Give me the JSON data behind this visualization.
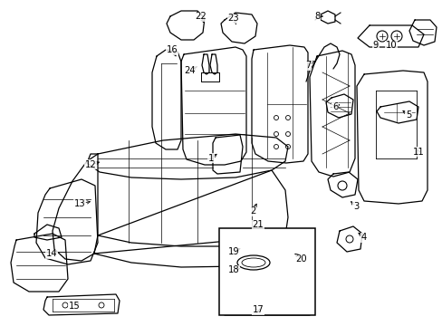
{
  "bg_color": "#ffffff",
  "line_color": "#000000",
  "fig_width": 4.89,
  "fig_height": 3.6,
  "dpi": 100,
  "annotations": [
    [
      "1",
      233,
      175,
      242,
      168,
      "right"
    ],
    [
      "2",
      279,
      233,
      285,
      222,
      "right"
    ],
    [
      "3",
      393,
      228,
      385,
      220,
      "left"
    ],
    [
      "4",
      402,
      262,
      393,
      255,
      "left"
    ],
    [
      "5",
      451,
      127,
      442,
      120,
      "left"
    ],
    [
      "6",
      370,
      118,
      378,
      114,
      "right"
    ],
    [
      "7",
      340,
      72,
      352,
      66,
      "right"
    ],
    [
      "8",
      350,
      18,
      360,
      18,
      "right"
    ],
    [
      "9",
      415,
      50,
      415,
      44,
      "center"
    ],
    [
      "10",
      432,
      50,
      432,
      44,
      "center"
    ],
    [
      "11",
      462,
      168,
      460,
      165,
      "right"
    ],
    [
      "12",
      100,
      182,
      113,
      178,
      "right"
    ],
    [
      "13",
      88,
      225,
      103,
      222,
      "right"
    ],
    [
      "14",
      57,
      280,
      65,
      275,
      "right"
    ],
    [
      "15",
      82,
      338,
      90,
      333,
      "right"
    ],
    [
      "16",
      190,
      55,
      196,
      65,
      "center"
    ],
    [
      "17",
      285,
      342,
      285,
      348,
      "center"
    ],
    [
      "18",
      258,
      298,
      268,
      296,
      "right"
    ],
    [
      "19",
      258,
      278,
      268,
      273,
      "right"
    ],
    [
      "20",
      333,
      286,
      323,
      278,
      "left"
    ],
    [
      "21",
      285,
      248,
      292,
      253,
      "right"
    ],
    [
      "22",
      222,
      18,
      226,
      28,
      "center"
    ],
    [
      "23",
      258,
      20,
      262,
      30,
      "center"
    ],
    [
      "24",
      210,
      78,
      220,
      72,
      "right"
    ]
  ]
}
